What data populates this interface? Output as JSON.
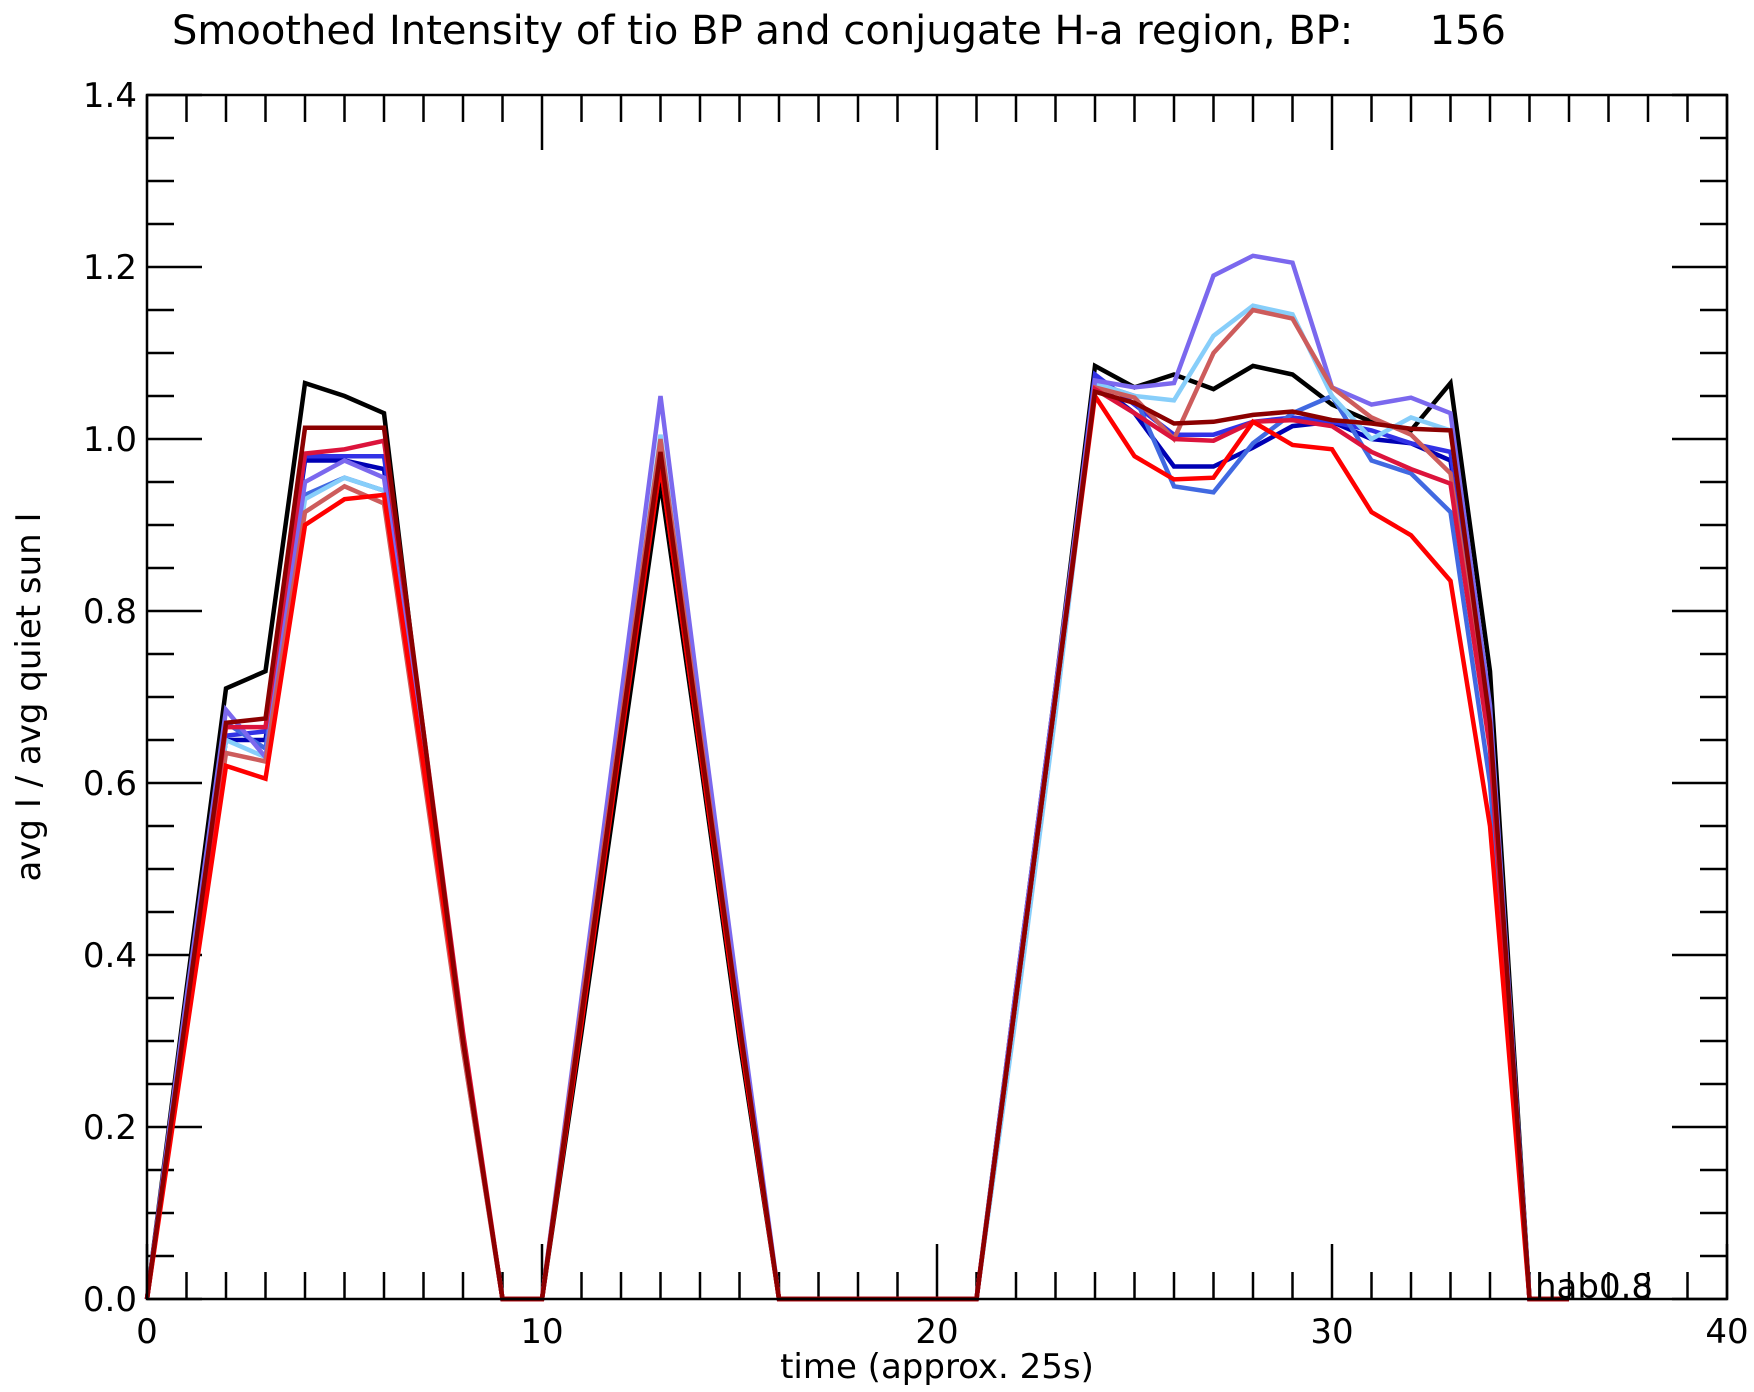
{
  "chart_data": {
    "type": "line",
    "title": "Smoothed Intensity of tio BP and conjugate H-a region, BP:      156",
    "xlabel": "time (approx. 25s)",
    "ylabel": "avg I / avg quiet sun I",
    "xlim": [
      0,
      40
    ],
    "ylim": [
      0,
      1.4
    ],
    "x_ticks": [
      "0",
      "10",
      "20",
      "30",
      "40"
    ],
    "y_ticks": [
      "0.0",
      "0.2",
      "0.4",
      "0.6",
      "0.8",
      "1.0",
      "1.2",
      "1.4"
    ],
    "end_label": "hab0.8",
    "grid": false,
    "x": [
      0,
      1,
      2,
      3,
      4,
      5,
      6,
      7,
      8,
      9,
      10,
      11,
      12,
      13,
      14,
      15,
      16,
      17,
      18,
      19,
      20,
      21,
      22,
      23,
      24,
      25,
      26,
      27,
      28,
      29,
      30,
      31,
      32,
      33,
      34,
      35,
      36
    ],
    "series": [
      {
        "color": "#000000",
        "values": [
          0,
          0.36,
          0.71,
          0.73,
          1.065,
          1.05,
          1.03,
          0.65,
          0.3,
          0,
          0,
          0.31,
          0.63,
          0.95,
          0.63,
          0.3,
          0,
          0,
          0,
          0,
          0,
          0,
          0.36,
          0.71,
          1.085,
          1.06,
          1.075,
          1.058,
          1.085,
          1.075,
          1.04,
          1.02,
          1.01,
          1.065,
          0.73,
          0,
          0
        ]
      },
      {
        "color": "#0000b4",
        "values": [
          0,
          0.33,
          0.65,
          0.65,
          0.975,
          0.975,
          0.965,
          0.64,
          0.3,
          0,
          0,
          0.33,
          0.66,
          0.98,
          0.65,
          0.32,
          0,
          0,
          0,
          0,
          0,
          0,
          0.35,
          0.7,
          1.065,
          1.03,
          0.968,
          0.968,
          0.99,
          1.015,
          1.02,
          1.0,
          0.995,
          0.975,
          0.68,
          0,
          0
        ]
      },
      {
        "color": "#3232e6",
        "values": [
          0,
          0.33,
          0.655,
          0.66,
          0.98,
          0.98,
          0.98,
          0.65,
          0.3,
          0,
          0,
          0.33,
          0.66,
          0.99,
          0.65,
          0.32,
          0,
          0,
          0,
          0,
          0,
          0,
          0.35,
          0.7,
          1.075,
          1.04,
          1.005,
          1.005,
          1.02,
          1.025,
          1.02,
          1.01,
          0.995,
          0.985,
          0.68,
          0,
          0
        ]
      },
      {
        "color": "#4169e1",
        "values": [
          0,
          0.34,
          0.67,
          0.64,
          0.935,
          0.955,
          0.94,
          0.63,
          0.3,
          0,
          0,
          0.34,
          0.67,
          1.0,
          0.66,
          0.32,
          0,
          0,
          0,
          0,
          0,
          0,
          0.35,
          0.7,
          1.065,
          1.05,
          0.945,
          0.938,
          0.995,
          1.03,
          1.05,
          0.975,
          0.96,
          0.915,
          0.6,
          0,
          0
        ]
      },
      {
        "color": "#87cefa",
        "values": [
          0,
          0.33,
          0.65,
          0.63,
          0.93,
          0.955,
          0.94,
          0.62,
          0.29,
          0,
          0,
          0.34,
          0.67,
          1.005,
          0.66,
          0.33,
          0,
          0,
          0,
          0,
          0,
          0,
          0.33,
          0.68,
          1.065,
          1.05,
          1.045,
          1.12,
          1.155,
          1.145,
          1.05,
          1.0,
          1.025,
          1.01,
          0.68,
          0,
          0
        ]
      },
      {
        "color": "#7b68ee",
        "values": [
          0,
          0.35,
          0.685,
          0.63,
          0.95,
          0.975,
          0.955,
          0.63,
          0.3,
          0,
          0,
          0.35,
          0.7,
          1.05,
          0.69,
          0.34,
          0,
          0,
          0,
          0,
          0,
          0,
          0.36,
          0.71,
          1.068,
          1.06,
          1.065,
          1.19,
          1.213,
          1.205,
          1.06,
          1.04,
          1.048,
          1.03,
          0.69,
          0,
          0
        ]
      },
      {
        "color": "#cd5c5c",
        "values": [
          0,
          0.32,
          0.635,
          0.625,
          0.915,
          0.945,
          0.925,
          0.61,
          0.29,
          0,
          0,
          0.34,
          0.67,
          1.0,
          0.66,
          0.32,
          0,
          0,
          0,
          0,
          0,
          0,
          0.35,
          0.7,
          1.06,
          1.048,
          1.0,
          1.1,
          1.15,
          1.14,
          1.06,
          1.025,
          1.005,
          0.96,
          0.65,
          0,
          0
        ]
      },
      {
        "color": "#dc143c",
        "values": [
          0,
          0.33,
          0.665,
          0.665,
          0.983,
          0.988,
          0.998,
          0.66,
          0.31,
          0,
          0,
          0.33,
          0.66,
          0.97,
          0.64,
          0.31,
          0,
          0,
          0,
          0,
          0,
          0,
          0.35,
          0.7,
          1.058,
          1.03,
          1.0,
          0.998,
          1.02,
          1.022,
          1.015,
          0.985,
          0.965,
          0.948,
          0.64,
          0,
          0
        ]
      },
      {
        "color": "#ff0000",
        "values": [
          0,
          0.31,
          0.62,
          0.605,
          0.9,
          0.93,
          0.935,
          0.62,
          0.3,
          0,
          0,
          0.32,
          0.65,
          0.97,
          0.64,
          0.31,
          0,
          0,
          0,
          0,
          0,
          0,
          0.35,
          0.7,
          1.05,
          0.98,
          0.953,
          0.955,
          1.02,
          0.993,
          0.988,
          0.915,
          0.888,
          0.835,
          0.55,
          0,
          0
        ]
      },
      {
        "color": "#8b0000",
        "values": [
          0,
          0.335,
          0.67,
          0.675,
          1.013,
          1.013,
          1.013,
          0.66,
          0.3,
          0,
          0,
          0.33,
          0.66,
          0.985,
          0.65,
          0.32,
          0,
          0,
          0,
          0,
          0,
          0,
          0.35,
          0.7,
          1.055,
          1.042,
          1.018,
          1.02,
          1.028,
          1.032,
          1.022,
          1.018,
          1.012,
          1.01,
          0.67,
          0,
          0
        ]
      }
    ]
  }
}
